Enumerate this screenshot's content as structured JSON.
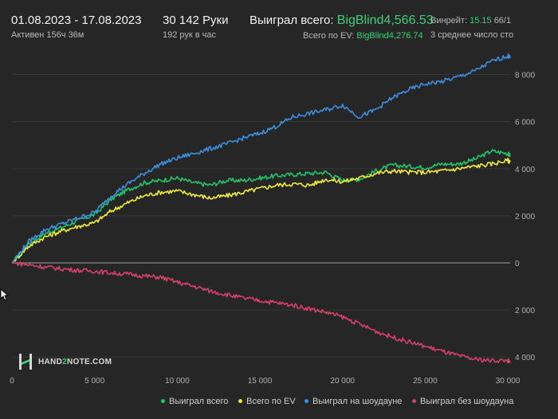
{
  "header": {
    "date_range": "01.08.2023 - 17.08.2023",
    "active": "Активен 156ч 36м",
    "hands": "30 142 Руки",
    "hands_per_hour": "192 рук в час",
    "won_label": "Выиграл всего:",
    "won_value": "BigBlind4,566.53",
    "ev_label": "Всего по EV:",
    "ev_value": "BigBlind4,276.74",
    "winrate_label": "Винрейт:",
    "winrate_value": "15.15",
    "winrate_extra": "66/1",
    "avg_label": "3 среднее число сто"
  },
  "logo": {
    "pre": "HAND",
    "mid": "2",
    "post": "NOTE.COM"
  },
  "colors": {
    "won": "#22c46b",
    "ev": "#f2ea3a",
    "showdown": "#3c8ee0",
    "no_showdown": "#d6406a",
    "grid": "#383838",
    "zero": "#8a8a8a"
  },
  "chart_data": {
    "type": "line",
    "xlim": [
      0,
      30142
    ],
    "ylim": [
      -4400,
      9000
    ],
    "x_ticks": [
      0,
      5000,
      10000,
      15000,
      20000,
      25000,
      30000
    ],
    "x_tick_labels": [
      "0",
      "5 000",
      "10 000",
      "15 000",
      "20 000",
      "25 000",
      "30 000"
    ],
    "y_ticks": [
      8000,
      6000,
      4000,
      2000,
      0,
      -2000,
      -4000
    ],
    "y_tick_labels": [
      "8 000",
      "6 000",
      "4 000",
      "2 000",
      "0",
      "2 000",
      "4 000"
    ],
    "grid": true,
    "legend_position": "bottom-right",
    "series": [
      {
        "name": "Выиграл всего",
        "color": "#22c46b",
        "x": [
          0,
          1000,
          2000,
          3000,
          4000,
          5000,
          6000,
          7000,
          8000,
          9000,
          10000,
          11000,
          12000,
          13000,
          14000,
          15000,
          16000,
          17000,
          18000,
          19000,
          20000,
          21000,
          22000,
          23000,
          24000,
          25000,
          26000,
          27000,
          28000,
          29000,
          30000,
          30142
        ],
        "y": [
          0,
          800,
          1250,
          1500,
          1800,
          2050,
          2700,
          3100,
          3400,
          3500,
          3600,
          3400,
          3300,
          3500,
          3500,
          3600,
          3700,
          3750,
          3800,
          3850,
          3500,
          3550,
          3900,
          4150,
          4100,
          4050,
          4200,
          4200,
          4400,
          4750,
          4650,
          4550
        ]
      },
      {
        "name": "Всего по EV",
        "color": "#f2ea3a",
        "x": [
          0,
          1000,
          2000,
          3000,
          4000,
          5000,
          6000,
          7000,
          8000,
          9000,
          10000,
          11000,
          12000,
          13000,
          14000,
          15000,
          16000,
          17000,
          18000,
          19000,
          20000,
          21000,
          22000,
          23000,
          24000,
          25000,
          26000,
          27000,
          28000,
          29000,
          30000,
          30142
        ],
        "y": [
          0,
          700,
          1100,
          1350,
          1550,
          1700,
          2200,
          2550,
          2850,
          3000,
          3050,
          2900,
          2750,
          2850,
          3000,
          3150,
          3300,
          3350,
          3300,
          3550,
          3450,
          3600,
          3800,
          3900,
          3850,
          3850,
          3900,
          4000,
          4100,
          4200,
          4350,
          4300
        ]
      },
      {
        "name": "Выиграл на шоудауне",
        "color": "#3c8ee0",
        "x": [
          0,
          1000,
          2000,
          3000,
          4000,
          5000,
          6000,
          7000,
          8000,
          9000,
          10000,
          11000,
          12000,
          13000,
          14000,
          15000,
          16000,
          17000,
          18000,
          19000,
          20000,
          21000,
          22000,
          23000,
          24000,
          25000,
          26000,
          27000,
          28000,
          29000,
          30000,
          30142
        ],
        "y": [
          0,
          900,
          1400,
          1650,
          1900,
          2150,
          2850,
          3350,
          3800,
          4200,
          4450,
          4650,
          4850,
          5050,
          5300,
          5500,
          5800,
          6200,
          6350,
          6500,
          6700,
          6200,
          6500,
          7000,
          7350,
          7600,
          7700,
          7900,
          8150,
          8550,
          8800,
          8700
        ]
      },
      {
        "name": "Выиграл без шоудауна",
        "color": "#d6406a",
        "x": [
          0,
          1000,
          2000,
          3000,
          4000,
          5000,
          6000,
          7000,
          8000,
          9000,
          10000,
          11000,
          12000,
          13000,
          14000,
          15000,
          16000,
          17000,
          18000,
          19000,
          20000,
          21000,
          22000,
          23000,
          24000,
          25000,
          26000,
          27000,
          28000,
          29000,
          30000,
          30142
        ],
        "y": [
          0,
          -80,
          -180,
          -250,
          -320,
          -350,
          -430,
          -480,
          -560,
          -620,
          -820,
          -1000,
          -1200,
          -1350,
          -1500,
          -1600,
          -1700,
          -1800,
          -1950,
          -2100,
          -2300,
          -2600,
          -2900,
          -3150,
          -3350,
          -3550,
          -3750,
          -3950,
          -4100,
          -4150,
          -4150,
          -4250
        ]
      }
    ]
  }
}
